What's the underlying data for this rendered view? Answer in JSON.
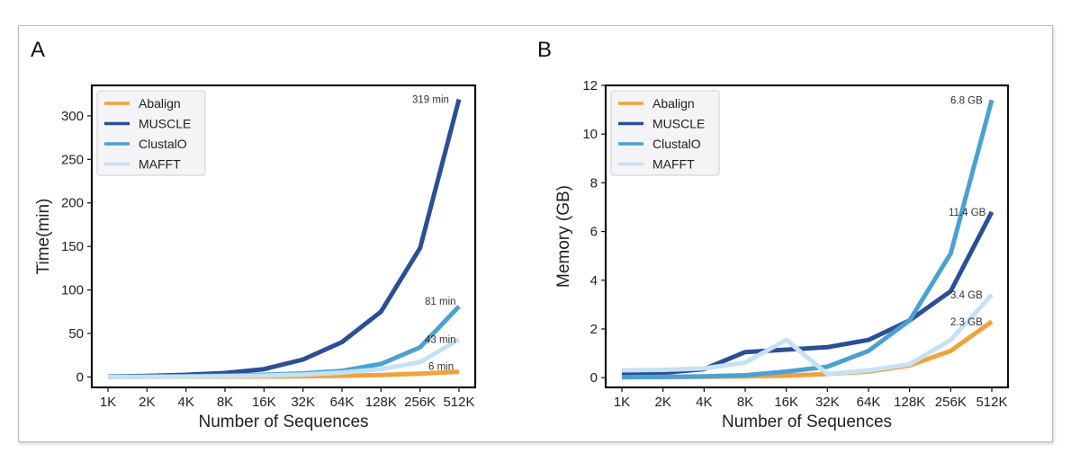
{
  "panels": [
    {
      "letter": "A"
    },
    {
      "letter": "B"
    }
  ],
  "chart_data": [
    {
      "type": "line",
      "panel": "A",
      "xlabel": "Number of Sequences",
      "ylabel": "Time(min)",
      "categories": [
        "1K",
        "2K",
        "4K",
        "8K",
        "16K",
        "32K",
        "64K",
        "128K",
        "256K",
        "512K"
      ],
      "ylim": [
        -12,
        335
      ],
      "yticks": [
        0,
        50,
        100,
        150,
        200,
        250,
        300
      ],
      "series": [
        {
          "name": "Abalign",
          "color": "#f0a23c",
          "values": [
            0.1,
            0.1,
            0.2,
            0.3,
            0.5,
            0.8,
            1.3,
            2.3,
            3.8,
            6
          ]
        },
        {
          "name": "MUSCLE",
          "color": "#2b4f95",
          "values": [
            0.5,
            1.2,
            2.5,
            4.5,
            9,
            20,
            40,
            75,
            148,
            319
          ]
        },
        {
          "name": "ClustalO",
          "color": "#4aa1d3",
          "values": [
            0.2,
            0.4,
            0.8,
            1.5,
            2.5,
            4,
            7,
            15,
            34,
            81
          ]
        },
        {
          "name": "MAFFT",
          "color": "#c6e1f4",
          "values": [
            0.1,
            0.2,
            0.4,
            0.8,
            1.5,
            2.8,
            5,
            9,
            17,
            43
          ]
        }
      ],
      "annotations": [
        "319 min",
        "81 min",
        "43 min",
        "6 min"
      ],
      "legend": "top-left",
      "grid": false
    },
    {
      "type": "line",
      "panel": "B",
      "xlabel": "Number of Sequences",
      "ylabel": "Memory (GB)",
      "categories": [
        "1K",
        "2K",
        "4K",
        "8K",
        "16K",
        "32K",
        "64K",
        "128K",
        "256K",
        "512K"
      ],
      "ylim": [
        -0.4,
        12
      ],
      "yticks": [
        0,
        2,
        4,
        6,
        8,
        10,
        12
      ],
      "series": [
        {
          "name": "Abalign",
          "color": "#f0a23c",
          "values": [
            0.02,
            0.02,
            0.03,
            0.05,
            0.08,
            0.15,
            0.25,
            0.5,
            1.1,
            2.3
          ]
        },
        {
          "name": "MUSCLE",
          "color": "#2b4f95",
          "values": [
            0.15,
            0.2,
            0.35,
            1.05,
            1.15,
            1.25,
            1.55,
            2.35,
            3.55,
            6.8
          ]
        },
        {
          "name": "ClustalO",
          "color": "#4aa1d3",
          "values": [
            0.02,
            0.03,
            0.05,
            0.1,
            0.25,
            0.45,
            1.1,
            2.35,
            5.1,
            11.4
          ]
        },
        {
          "name": "MAFFT",
          "color": "#c6e1f4",
          "values": [
            0.3,
            0.32,
            0.38,
            0.62,
            1.55,
            0.15,
            0.3,
            0.55,
            1.55,
            3.4
          ]
        }
      ],
      "annotations": [
        "11.4 GB",
        "6.8 GB",
        "3.4 GB",
        "2.3 GB"
      ],
      "legend": "top-left",
      "grid": false
    }
  ]
}
